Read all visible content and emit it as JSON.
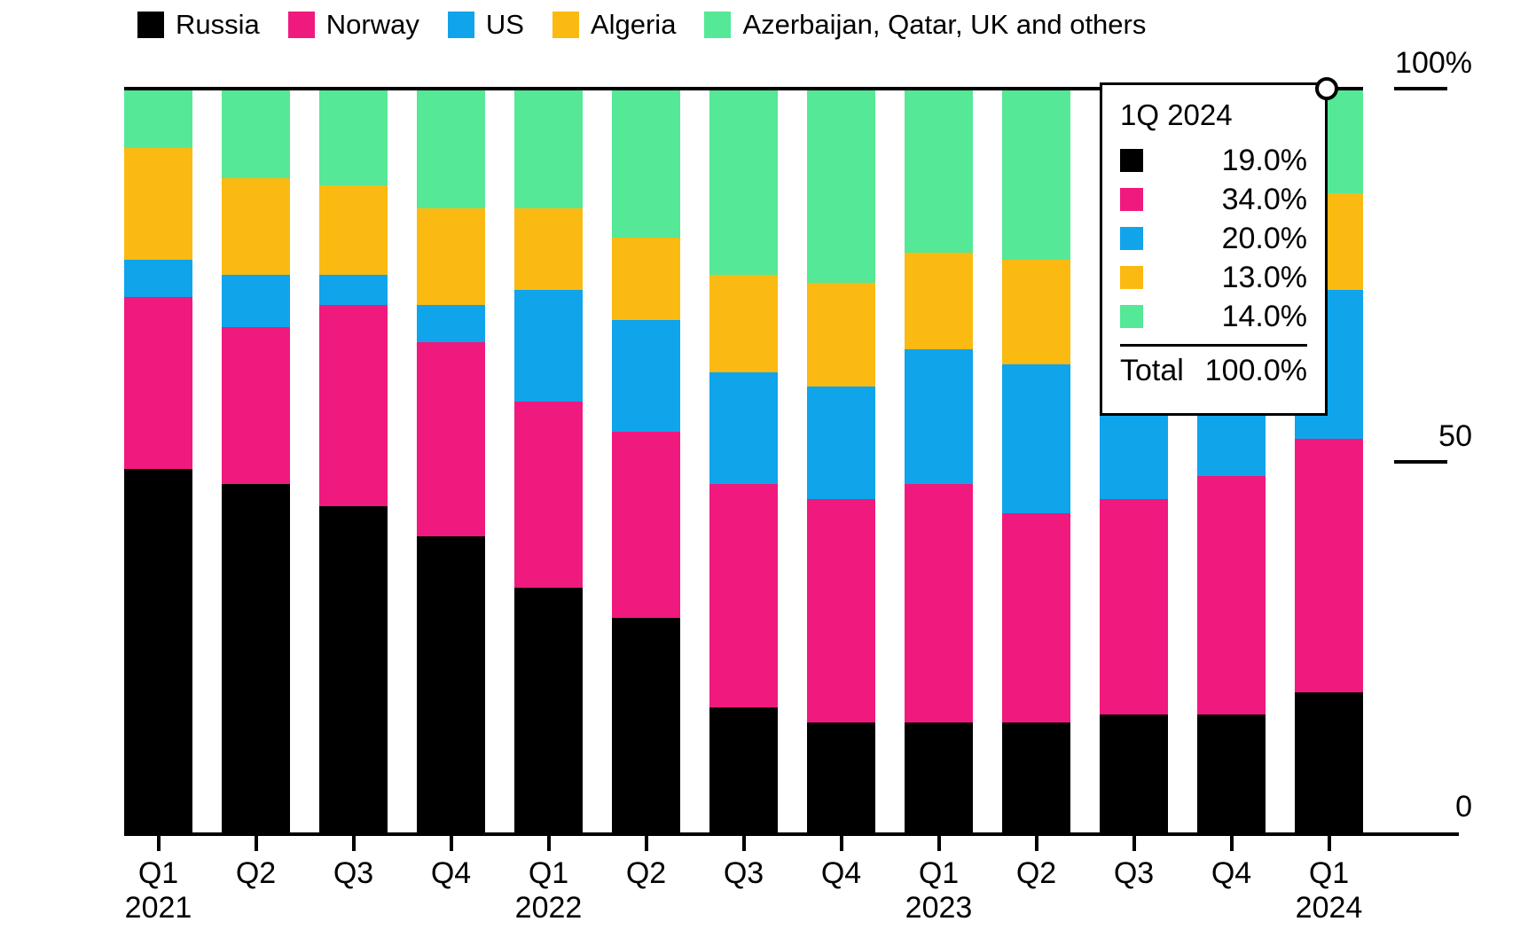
{
  "chart_data": {
    "type": "bar",
    "variant": "stacked-100-percent",
    "unit": "%",
    "categories": [
      "Q1 2021",
      "Q2 2021",
      "Q3 2021",
      "Q4 2021",
      "Q1 2022",
      "Q2 2022",
      "Q3 2022",
      "Q4 2022",
      "Q1 2023",
      "Q2 2023",
      "Q3 2023",
      "Q4 2023",
      "Q1 2024"
    ],
    "x_tick_labels": [
      {
        "quarter": "Q1",
        "year": "2021"
      },
      {
        "quarter": "Q2",
        "year": ""
      },
      {
        "quarter": "Q3",
        "year": ""
      },
      {
        "quarter": "Q4",
        "year": ""
      },
      {
        "quarter": "Q1",
        "year": "2022"
      },
      {
        "quarter": "Q2",
        "year": ""
      },
      {
        "quarter": "Q3",
        "year": ""
      },
      {
        "quarter": "Q4",
        "year": ""
      },
      {
        "quarter": "Q1",
        "year": "2023"
      },
      {
        "quarter": "Q2",
        "year": ""
      },
      {
        "quarter": "Q3",
        "year": ""
      },
      {
        "quarter": "Q4",
        "year": ""
      },
      {
        "quarter": "Q1",
        "year": "2024"
      }
    ],
    "series": [
      {
        "name": "Russia",
        "color": "#000000",
        "values": [
          49,
          47,
          44,
          40,
          33,
          29,
          17,
          15,
          15,
          15,
          16,
          16,
          19
        ]
      },
      {
        "name": "Norway",
        "color": "#F0197E",
        "values": [
          23,
          21,
          27,
          26,
          25,
          25,
          30,
          30,
          32,
          28,
          29,
          32,
          34
        ]
      },
      {
        "name": "US",
        "color": "#10A4EB",
        "values": [
          5,
          7,
          4,
          5,
          15,
          15,
          15,
          15,
          18,
          20,
          20,
          20,
          20
        ]
      },
      {
        "name": "Algeria",
        "color": "#FBBA12",
        "values": [
          15,
          13,
          12,
          13,
          11,
          11,
          13,
          14,
          13,
          14,
          14,
          13,
          13
        ]
      },
      {
        "name": "Azerbaijan, Qatar, UK and others",
        "color": "#55E896",
        "values": [
          8,
          12,
          13,
          16,
          16,
          20,
          25,
          26,
          22,
          23,
          21,
          19,
          14
        ]
      }
    ],
    "stack_order": "first series at bottom",
    "ylim": [
      0,
      100
    ],
    "y_axis_labels": [
      {
        "text": "100%",
        "value": 100
      },
      {
        "text": "50",
        "value": 50
      },
      {
        "text": "0",
        "value": 0
      }
    ],
    "legend_position": "top",
    "grid": "top rule at 100% and bottom axis line only"
  },
  "tooltip": {
    "title": "1Q 2024",
    "rows": [
      {
        "series": "Russia",
        "value": "19.0%"
      },
      {
        "series": "Norway",
        "value": "34.0%"
      },
      {
        "series": "US",
        "value": "20.0%"
      },
      {
        "series": "Algeria",
        "value": "13.0%"
      },
      {
        "series": "Azerbaijan, Qatar, UK and others",
        "value": "14.0%"
      }
    ],
    "total_label": "Total",
    "total_value": "100.0%",
    "highlighted_category": "Q1 2024"
  }
}
